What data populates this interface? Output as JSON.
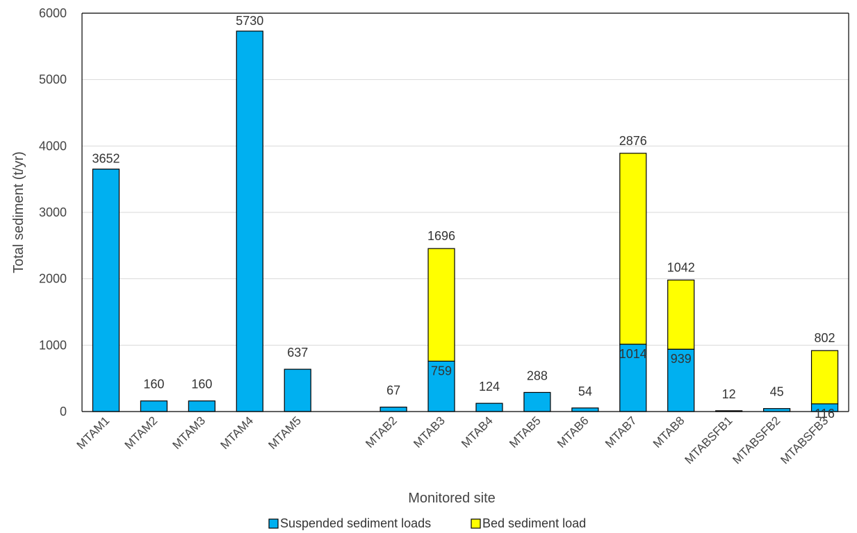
{
  "chart_data": {
    "type": "bar",
    "stacked": true,
    "title": "",
    "xlabel": "Monitored site",
    "ylabel": "Total sediment (t/yr)",
    "ylim": [
      0,
      6000
    ],
    "yticks": [
      0,
      1000,
      2000,
      3000,
      4000,
      5000,
      6000
    ],
    "grid": true,
    "legend_position": "bottom",
    "slots": [
      "MTAM1",
      "MTAM2",
      "MTAM3",
      "MTAM4",
      "MTAM5",
      "",
      "MTAB2",
      "MTAB3",
      "MTAB4",
      "MTAB5",
      "MTAB6",
      "MTAB7",
      "MTAB8",
      "MTABSFB1",
      "MTABSFB2",
      "MTABSFB3"
    ],
    "categories": [
      "MTAM1",
      "MTAM2",
      "MTAM3",
      "MTAM4",
      "MTAM5",
      "MTAB2",
      "MTAB3",
      "MTAB4",
      "MTAB5",
      "MTAB6",
      "MTAB7",
      "MTAB8",
      "MTABSFB1",
      "MTABSFB2",
      "MTABSFB3"
    ],
    "series": [
      {
        "name": "Suspended sediment loads",
        "color": "#00B0F0",
        "values": [
          3652,
          160,
          160,
          5730,
          637,
          67,
          759,
          124,
          288,
          54,
          1014,
          939,
          12,
          45,
          116
        ]
      },
      {
        "name": "Bed sediment load",
        "color": "#FFFF00",
        "values": [
          0,
          0,
          0,
          0,
          0,
          0,
          1696,
          0,
          0,
          0,
          2876,
          1042,
          0,
          0,
          802
        ]
      }
    ]
  }
}
